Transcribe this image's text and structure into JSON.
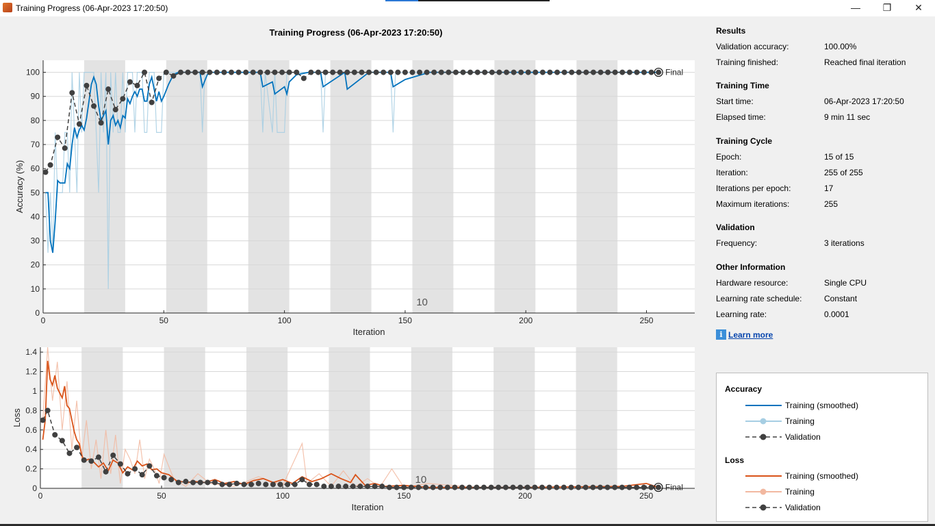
{
  "window": {
    "title": "Training Progress (06-Apr-2023 17:20:50)",
    "minimize_glyph": "—",
    "maximize_glyph": "❐",
    "close_glyph": "✕"
  },
  "plot_title": "Training Progress (06-Apr-2023 17:20:50)",
  "results": {
    "heading": "Results",
    "validation_accuracy_label": "Validation accuracy:",
    "validation_accuracy": "100.00%",
    "training_finished_label": "Training finished:",
    "training_finished": "Reached final iteration"
  },
  "training_time": {
    "heading": "Training Time",
    "start_time_label": "Start time:",
    "start_time": "06-Apr-2023 17:20:50",
    "elapsed_time_label": "Elapsed time:",
    "elapsed_time": "9 min 11 sec"
  },
  "training_cycle": {
    "heading": "Training Cycle",
    "epoch_label": "Epoch:",
    "epoch": "15 of 15",
    "iteration_label": "Iteration:",
    "iteration": "255 of 255",
    "iterations_per_epoch_label": "Iterations per epoch:",
    "iterations_per_epoch": "17",
    "max_iterations_label": "Maximum iterations:",
    "max_iterations": "255"
  },
  "validation": {
    "heading": "Validation",
    "frequency_label": "Frequency:",
    "frequency": "3 iterations"
  },
  "other_info": {
    "heading": "Other Information",
    "hardware_label": "Hardware resource:",
    "hardware": "Single CPU",
    "lr_schedule_label": "Learning rate schedule:",
    "lr_schedule": "Constant",
    "lr_label": "Learning rate:",
    "lr": "0.0001"
  },
  "learn_more": "Learn more",
  "legend": {
    "accuracy_heading": "Accuracy",
    "acc_smoothed": "Training (smoothed)",
    "acc_training": "Training",
    "acc_validation": "Validation",
    "loss_heading": "Loss",
    "loss_smoothed": "Training (smoothed)",
    "loss_training": "Training",
    "loss_validation": "Validation"
  },
  "colors": {
    "accuracy_smoothed": "#0072bd",
    "accuracy_raw": "#a6cee3",
    "loss_smoothed": "#d95319",
    "loss_raw": "#f2b8a0",
    "validation": "#404040",
    "epoch_shade": "#e3e3e3"
  },
  "chart_data": [
    {
      "type": "line",
      "xlabel": "Iteration",
      "ylabel": "Accuracy (%)",
      "xlim": [
        0,
        270
      ],
      "ylim": [
        0,
        105
      ],
      "xticks": [
        0,
        50,
        100,
        150,
        200,
        250
      ],
      "yticks": [
        0,
        10,
        20,
        30,
        40,
        50,
        60,
        70,
        80,
        90,
        100
      ],
      "epoch_marker_label": "10",
      "final_label": "Final",
      "shaded_epochs": [
        [
          17,
          34
        ],
        [
          51,
          68
        ],
        [
          85,
          102
        ],
        [
          119,
          136
        ],
        [
          153,
          170
        ],
        [
          187,
          204
        ],
        [
          221,
          238
        ]
      ],
      "series": [
        {
          "name": "Training (smoothed)",
          "x": [
            1,
            2,
            3,
            4,
            5,
            6,
            7,
            8,
            9,
            10,
            11,
            12,
            13,
            14,
            15,
            16,
            17,
            18,
            19,
            20,
            21,
            22,
            23,
            24,
            25,
            26,
            27,
            28,
            29,
            30,
            31,
            32,
            33,
            34,
            35,
            36,
            37,
            38,
            39,
            40,
            41,
            42,
            43,
            44,
            45,
            46,
            47,
            48,
            49,
            50,
            52,
            54,
            56,
            60,
            65,
            66,
            68,
            70,
            90,
            91,
            95,
            96,
            100,
            101,
            102,
            105,
            110,
            115,
            116,
            125,
            126,
            135,
            144,
            145,
            150,
            160,
            200,
            255
          ],
          "y": [
            50,
            50,
            30,
            25,
            38,
            55,
            54,
            54,
            54,
            62,
            60,
            70,
            77,
            73,
            76,
            78,
            76,
            81,
            88,
            95,
            98,
            95,
            86,
            80,
            82,
            84,
            70,
            80,
            82,
            78,
            80,
            77,
            82,
            81,
            89,
            87,
            90,
            92,
            90,
            93,
            93,
            88,
            88,
            95,
            98,
            93,
            88,
            92,
            88,
            90,
            95,
            99,
            100,
            100,
            100,
            94,
            99,
            100,
            100,
            94,
            96,
            91,
            94,
            91,
            96,
            99,
            100,
            100,
            94,
            100,
            93,
            100,
            100,
            94,
            97,
            100,
            100,
            100
          ]
        },
        {
          "name": "Training",
          "x": [
            1,
            2,
            3,
            4,
            5,
            6,
            7,
            8,
            9,
            10,
            11,
            12,
            13,
            14,
            15,
            16,
            17,
            18,
            19,
            20,
            21,
            22,
            23,
            24,
            25,
            26,
            27,
            28,
            29,
            30,
            31,
            32,
            33,
            34,
            35,
            36,
            37,
            38,
            39,
            40,
            41,
            42,
            43,
            44,
            45,
            46,
            47,
            48,
            49,
            50,
            51,
            52,
            55,
            60,
            65,
            66,
            67,
            70,
            90,
            91,
            92,
            95,
            96,
            97,
            100,
            101,
            102,
            105,
            110,
            115,
            116,
            117,
            120,
            144,
            145,
            146,
            150,
            255
          ],
          "y": [
            50,
            25,
            50,
            25,
            75,
            50,
            50,
            50,
            75,
            75,
            50,
            100,
            75,
            50,
            100,
            75,
            100,
            100,
            100,
            100,
            100,
            75,
            50,
            100,
            75,
            100,
            10,
            100,
            75,
            100,
            75,
            75,
            100,
            75,
            100,
            100,
            100,
            75,
            100,
            100,
            100,
            75,
            75,
            100,
            100,
            100,
            75,
            75,
            75,
            100,
            100,
            100,
            100,
            100,
            100,
            75,
            100,
            100,
            100,
            75,
            100,
            75,
            100,
            75,
            75,
            100,
            100,
            100,
            100,
            100,
            75,
            100,
            100,
            100,
            75,
            100,
            100,
            100
          ]
        },
        {
          "name": "Validation",
          "x": [
            1,
            3,
            6,
            9,
            12,
            15,
            18,
            21,
            24,
            27,
            30,
            33,
            36,
            39,
            42,
            45,
            48,
            51,
            54,
            57,
            60,
            63,
            66,
            69,
            72,
            75,
            78,
            81,
            84,
            87,
            90,
            93,
            96,
            99,
            102,
            105,
            108,
            111,
            114,
            117,
            120,
            123,
            126,
            129,
            132,
            135,
            138,
            141,
            144,
            147,
            150,
            153,
            156,
            159,
            162,
            165,
            168,
            171,
            174,
            177,
            180,
            183,
            186,
            189,
            192,
            195,
            198,
            201,
            204,
            207,
            210,
            213,
            216,
            219,
            222,
            225,
            228,
            231,
            234,
            237,
            240,
            243,
            246,
            249,
            252,
            255
          ],
          "y": [
            58.5,
            61.5,
            73,
            68.5,
            91.5,
            78.5,
            94.5,
            86,
            79,
            93,
            84.5,
            89,
            96,
            94.5,
            100,
            87.5,
            97.5,
            100,
            98.5,
            100,
            100,
            100,
            100,
            100,
            100,
            100,
            100,
            100,
            100,
            100,
            100,
            100,
            100,
            100,
            100,
            100,
            97.5,
            100,
            100,
            100,
            100,
            100,
            100,
            100,
            100,
            100,
            100,
            100,
            100,
            100,
            100,
            100,
            100,
            100,
            100,
            100,
            100,
            100,
            100,
            100,
            100,
            100,
            100,
            100,
            100,
            100,
            100,
            100,
            100,
            100,
            100,
            100,
            100,
            100,
            100,
            100,
            100,
            100,
            100,
            100,
            100,
            100,
            100,
            100,
            100,
            100
          ]
        }
      ]
    },
    {
      "type": "line",
      "xlabel": "Iteration",
      "ylabel": "Loss",
      "xlim": [
        0,
        270
      ],
      "ylim": [
        0,
        1.45
      ],
      "xticks": [
        0,
        50,
        100,
        150,
        200,
        250
      ],
      "yticks": [
        0,
        0.2,
        0.4,
        0.6,
        0.8,
        1,
        1.2,
        1.4
      ],
      "ytick_labels": [
        "0",
        "0.2",
        "0.4",
        "0.6",
        "0.8",
        "1",
        "1.2",
        "1.4"
      ],
      "epoch_marker_label": "10",
      "final_label": "Final",
      "shaded_epochs": [
        [
          17,
          34
        ],
        [
          51,
          68
        ],
        [
          85,
          102
        ],
        [
          119,
          136
        ],
        [
          153,
          170
        ],
        [
          187,
          204
        ],
        [
          221,
          238
        ]
      ],
      "series": [
        {
          "name": "Training (smoothed)",
          "x": [
            1,
            2,
            3,
            4,
            5,
            6,
            7,
            8,
            9,
            10,
            11,
            12,
            13,
            14,
            15,
            16,
            17,
            18,
            20,
            22,
            24,
            26,
            28,
            30,
            32,
            34,
            36,
            38,
            40,
            42,
            44,
            46,
            48,
            50,
            53,
            56,
            60,
            64,
            68,
            72,
            76,
            80,
            84,
            88,
            92,
            96,
            100,
            104,
            108,
            112,
            116,
            120,
            124,
            128,
            130,
            134,
            138,
            142,
            150,
            160,
            200,
            240,
            250,
            255
          ],
          "y": [
            0.5,
            0.7,
            1.31,
            1.12,
            1.06,
            1.16,
            1.03,
            0.98,
            0.93,
            1.05,
            0.85,
            0.82,
            0.7,
            0.58,
            0.5,
            0.46,
            0.35,
            0.28,
            0.3,
            0.27,
            0.22,
            0.26,
            0.18,
            0.29,
            0.26,
            0.16,
            0.22,
            0.19,
            0.28,
            0.23,
            0.25,
            0.19,
            0.2,
            0.16,
            0.14,
            0.08,
            0.06,
            0.07,
            0.06,
            0.09,
            0.05,
            0.07,
            0.04,
            0.08,
            0.1,
            0.06,
            0.09,
            0.05,
            0.12,
            0.07,
            0.1,
            0.15,
            0.1,
            0.06,
            0.14,
            0.03,
            0.05,
            0.02,
            0.03,
            0.01,
            0.01,
            0.02,
            0.05,
            0.01
          ]
        },
        {
          "name": "Training",
          "x": [
            1,
            3,
            5,
            7,
            9,
            11,
            13,
            15,
            17,
            19,
            21,
            23,
            25,
            27,
            29,
            31,
            33,
            35,
            37,
            39,
            41,
            43,
            45,
            47,
            49,
            51,
            55,
            60,
            65,
            70,
            80,
            90,
            100,
            108,
            110,
            115,
            120,
            125,
            130,
            135,
            140,
            145,
            150,
            160,
            180,
            220,
            255
          ],
          "y": [
            0.7,
            1.45,
            0.9,
            1.3,
            0.6,
            1.1,
            0.4,
            0.9,
            0.3,
            0.7,
            0.2,
            0.5,
            0.1,
            0.6,
            0.15,
            0.55,
            0.05,
            0.4,
            0.3,
            0.15,
            0.5,
            0.1,
            0.3,
            0.2,
            0.05,
            0.35,
            0.1,
            0.02,
            0.15,
            0.05,
            0.02,
            0.12,
            0.03,
            0.46,
            0.05,
            0.15,
            0.02,
            0.18,
            0.02,
            0.1,
            0.01,
            0.2,
            0.01,
            0.05,
            0.01,
            0.01,
            0.01
          ]
        },
        {
          "name": "Validation",
          "x": [
            1,
            3,
            6,
            9,
            12,
            15,
            18,
            21,
            24,
            27,
            30,
            33,
            36,
            39,
            42,
            45,
            48,
            51,
            54,
            57,
            60,
            63,
            66,
            69,
            72,
            75,
            78,
            81,
            84,
            87,
            90,
            93,
            96,
            99,
            102,
            105,
            108,
            111,
            114,
            117,
            120,
            123,
            126,
            129,
            132,
            135,
            138,
            141,
            144,
            147,
            150,
            153,
            156,
            159,
            162,
            165,
            168,
            171,
            174,
            177,
            180,
            183,
            186,
            189,
            192,
            195,
            198,
            201,
            204,
            207,
            210,
            213,
            216,
            219,
            222,
            225,
            228,
            231,
            234,
            237,
            240,
            243,
            246,
            249,
            252,
            255
          ],
          "y": [
            0.7,
            0.8,
            0.55,
            0.49,
            0.36,
            0.42,
            0.29,
            0.28,
            0.32,
            0.17,
            0.34,
            0.25,
            0.15,
            0.2,
            0.14,
            0.23,
            0.13,
            0.11,
            0.09,
            0.06,
            0.07,
            0.06,
            0.06,
            0.06,
            0.06,
            0.04,
            0.04,
            0.05,
            0.04,
            0.04,
            0.05,
            0.04,
            0.04,
            0.04,
            0.04,
            0.04,
            0.09,
            0.04,
            0.04,
            0.02,
            0.02,
            0.02,
            0.02,
            0.02,
            0.02,
            0.02,
            0.02,
            0.02,
            0.01,
            0.01,
            0.01,
            0.01,
            0.01,
            0.01,
            0.01,
            0.01,
            0.01,
            0.01,
            0.01,
            0.01,
            0.01,
            0.01,
            0.01,
            0.01,
            0.01,
            0.01,
            0.01,
            0.01,
            0.01,
            0.01,
            0.01,
            0.01,
            0.01,
            0.01,
            0.01,
            0.01,
            0.01,
            0.01,
            0.01,
            0.01,
            0.01,
            0.01,
            0.01,
            0.01,
            0.01,
            0.01
          ]
        }
      ]
    }
  ]
}
